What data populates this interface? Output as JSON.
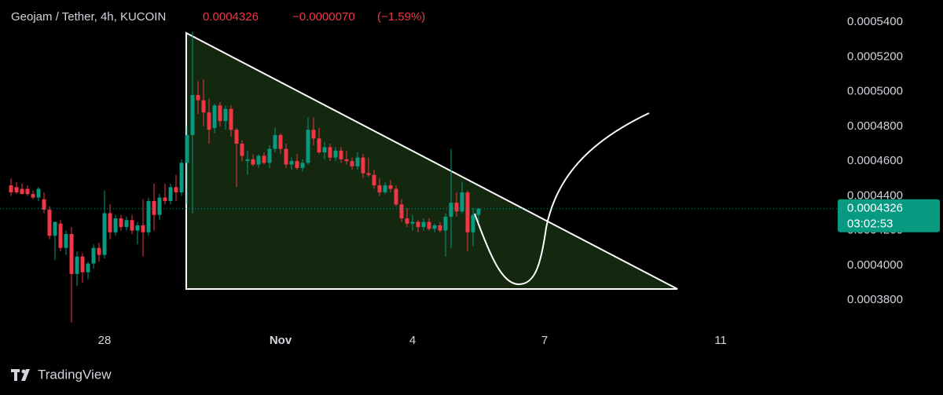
{
  "chart_data": {
    "type": "candlestick",
    "title": "Geojam / Tether, 4h, KUCOIN",
    "change": "−0.0000070",
    "change_pct": "(−1.59%)",
    "last_price": 0.0004326,
    "timer": "03:02:53",
    "brand": "TradingView",
    "up_color": "#089981",
    "down_color": "#f23645",
    "grid": false,
    "ylim": [
      0.0003493,
      0.0005527
    ],
    "yticks": [
      {
        "value": 0.00038,
        "label": "0.0003800"
      },
      {
        "value": 0.0004,
        "label": "0.0004000"
      },
      {
        "value": 0.00042,
        "label": "0.0004200"
      },
      {
        "value": 0.00044,
        "label": "0.0004400"
      },
      {
        "value": 0.00046,
        "label": "0.0004600"
      },
      {
        "value": 0.00048,
        "label": "0.0004800"
      },
      {
        "value": 0.0005,
        "label": "0.0005000"
      },
      {
        "value": 0.00052,
        "label": "0.0005200"
      },
      {
        "value": 0.00054,
        "label": "0.0005400"
      }
    ],
    "categories": [
      null,
      null,
      null,
      null,
      null,
      null,
      null,
      null,
      null,
      null,
      null,
      null,
      null,
      null,
      null,
      null,
      null,
      "28",
      null,
      null,
      null,
      null,
      null,
      null,
      null,
      null,
      null,
      null,
      null,
      null,
      null,
      null,
      null,
      null,
      null,
      null,
      null,
      null,
      null,
      null,
      null,
      null,
      null,
      null,
      null,
      null,
      null,
      null,
      null,
      "Nov",
      null,
      null,
      null,
      null,
      null,
      null,
      null,
      null,
      null,
      null,
      null,
      null,
      null,
      null,
      null,
      null,
      null,
      null,
      null,
      null,
      null,
      null,
      null,
      "4",
      null,
      null,
      null,
      null,
      null,
      null,
      null,
      null,
      null,
      null,
      null,
      null,
      null,
      null,
      null,
      null,
      null,
      null,
      null,
      null,
      null,
      null,
      null,
      "7",
      null,
      null,
      null,
      null,
      null,
      null,
      null,
      null,
      null,
      null,
      null,
      null,
      null,
      null,
      null,
      null,
      null,
      null,
      null,
      null,
      null,
      null,
      null,
      null,
      null,
      null,
      null,
      null,
      null,
      null,
      null,
      "11",
      null,
      null,
      null,
      null,
      null,
      null,
      null,
      null,
      null,
      null,
      null,
      null,
      null,
      null,
      null,
      null,
      null,
      null,
      null,
      null,
      null
    ],
    "open": [
      0.000446,
      0.000445,
      0.000444,
      0.000444,
      0.000441,
      0.000439,
      0.000438,
      0.000432,
      0.000417,
      0.000424,
      0.00041,
      0.000418,
      0.000395,
      0.000405,
      0.000396,
      0.000401,
      0.00041,
      0.000406,
      0.00043,
      0.000419,
      0.000427,
      0.000422,
      0.000426,
      0.00042,
      0.000423,
      0.000419,
      0.000437,
      0.000429,
      0.000439,
      0.000437,
      0.000445,
      0.000442,
      0.000459,
      0.000475,
      0.000498,
      0.000495,
      0.000488,
      0.000479,
      0.000492,
      0.000483,
      0.00049,
      0.000478,
      0.00047,
      0.00046,
      0.000461,
      0.000458,
      0.000463,
      0.000459,
      0.000467,
      0.000475,
      0.000467,
      0.000458,
      0.00046,
      0.000456,
      0.000459,
      0.000478,
      0.000473,
      0.000465,
      0.000468,
      0.000462,
      0.000466,
      0.000461,
      0.00046,
      0.000457,
      0.000462,
      0.000453,
      0.000452,
      0.000446,
      0.000442,
      0.000446,
      0.000444,
      0.000435,
      0.000427,
      0.000424,
      0.000425,
      0.000422,
      0.000425,
      0.000421,
      0.000423,
      0.00042,
      0.000428,
      0.000436,
      0.000431,
      0.000442,
      0.000419,
      0.000429,
      null,
      null,
      null,
      null,
      null,
      null,
      null,
      null,
      null,
      null,
      null,
      null,
      null,
      null,
      null,
      null,
      null,
      null,
      null,
      null,
      null,
      null,
      null,
      null,
      null,
      null,
      null,
      null,
      null,
      null,
      null,
      null,
      null,
      null,
      null,
      null,
      null,
      null,
      null,
      null,
      null,
      null,
      null,
      null,
      null,
      null,
      null,
      null,
      null,
      null,
      null,
      null,
      null,
      null,
      null,
      null,
      null,
      null,
      null,
      null,
      null,
      null,
      null,
      null,
      null
    ],
    "high": [
      0.00045,
      0.000448,
      0.000447,
      0.000446,
      0.000443,
      0.000445,
      0.000442,
      0.000434,
      0.000423,
      0.000426,
      0.00042,
      0.000422,
      0.000408,
      0.000407,
      0.000402,
      0.000412,
      0.000413,
      0.000443,
      0.000435,
      0.000429,
      0.000429,
      0.000428,
      0.000429,
      0.000425,
      0.000438,
      0.000439,
      0.000447,
      0.000441,
      0.000447,
      0.000447,
      0.000452,
      0.000461,
      0.00048,
      0.0005345,
      0.000506,
      0.000507,
      0.000496,
      0.000493,
      0.000494,
      0.000492,
      0.000492,
      0.000479,
      0.000472,
      0.000466,
      0.000464,
      0.000464,
      0.000465,
      0.000469,
      0.000479,
      0.000476,
      0.00047,
      0.000462,
      0.000464,
      0.000461,
      0.000485,
      0.000485,
      0.000479,
      0.000471,
      0.00047,
      0.000468,
      0.000468,
      0.000466,
      0.000462,
      0.000465,
      0.000464,
      0.000462,
      0.000455,
      0.00045,
      0.000448,
      0.000449,
      0.000446,
      0.000438,
      0.000433,
      0.000429,
      0.000426,
      0.000427,
      0.000427,
      0.000424,
      0.000425,
      0.00043,
      0.000467,
      0.000442,
      0.000448,
      0.000443,
      0.000433,
      0.000433,
      null,
      null,
      null,
      null,
      null,
      null,
      null,
      null,
      null,
      null,
      null,
      null,
      null,
      null,
      null,
      null,
      null,
      null,
      null,
      null,
      null,
      null,
      null,
      null,
      null,
      null,
      null,
      null,
      null,
      null,
      null,
      null,
      null,
      null,
      null,
      null,
      null,
      null,
      null,
      null,
      null,
      null,
      null,
      null,
      null,
      null,
      null,
      null,
      null,
      null,
      null,
      null,
      null,
      null,
      null,
      null,
      null,
      null,
      null,
      null,
      null,
      null,
      null,
      null,
      null
    ],
    "low": [
      0.00044,
      0.000441,
      0.000441,
      0.00044,
      0.000438,
      0.000437,
      0.00043,
      0.000415,
      0.000403,
      0.000408,
      0.000406,
      0.000367,
      0.000388,
      0.00039,
      0.000392,
      0.000398,
      0.000402,
      0.000404,
      0.000415,
      0.000417,
      0.00042,
      0.00042,
      0.000418,
      0.000412,
      0.000405,
      0.000417,
      0.00042,
      0.000426,
      0.000435,
      0.000435,
      0.000437,
      0.00044,
      0.000435,
      0.00043,
      0.000487,
      0.00048,
      0.00047,
      0.000476,
      0.00048,
      0.000478,
      0.000474,
      0.000445,
      0.00046,
      0.000452,
      0.000457,
      0.000456,
      0.000458,
      0.000456,
      0.000465,
      0.000464,
      0.000456,
      0.000455,
      0.000455,
      0.000454,
      0.000458,
      0.000469,
      0.000464,
      0.000461,
      0.00046,
      0.00046,
      0.000459,
      0.000458,
      0.000455,
      0.000455,
      0.00045,
      0.000451,
      0.000444,
      0.00044,
      0.000441,
      0.000442,
      0.000434,
      0.000425,
      0.000422,
      0.00042,
      0.000419,
      0.00042,
      0.00042,
      0.000419,
      0.000419,
      0.000405,
      0.00041,
      0.000428,
      0.00043,
      0.000408,
      0.000411,
      0.000425,
      null,
      null,
      null,
      null,
      null,
      null,
      null,
      null,
      null,
      null,
      null,
      null,
      null,
      null,
      null,
      null,
      null,
      null,
      null,
      null,
      null,
      null,
      null,
      null,
      null,
      null,
      null,
      null,
      null,
      null,
      null,
      null,
      null,
      null,
      null,
      null,
      null,
      null,
      null,
      null,
      null,
      null,
      null,
      null,
      null,
      null,
      null,
      null,
      null,
      null,
      null,
      null,
      null,
      null,
      null,
      null,
      null,
      null,
      null,
      null,
      null,
      null,
      null,
      null,
      null
    ],
    "close": [
      0.000442,
      0.000442,
      0.000441,
      0.000441,
      0.000439,
      0.000444,
      0.000432,
      0.000417,
      0.000425,
      0.00041,
      0.000418,
      0.000395,
      0.000405,
      0.000396,
      0.000401,
      0.00041,
      0.000406,
      0.00043,
      0.000419,
      0.000427,
      0.000422,
      0.000426,
      0.00042,
      0.000423,
      0.000419,
      0.000437,
      0.000429,
      0.000439,
      0.000437,
      0.000445,
      0.000442,
      0.000459,
      0.000475,
      0.000498,
      0.000495,
      0.000488,
      0.000478,
      0.000492,
      0.000483,
      0.00049,
      0.000478,
      0.00047,
      0.000463,
      0.000461,
      0.000458,
      0.000463,
      0.000459,
      0.000467,
      0.000475,
      0.000467,
      0.000458,
      0.00046,
      0.000456,
      0.000459,
      0.000478,
      0.000473,
      0.000465,
      0.000468,
      0.000462,
      0.000466,
      0.000461,
      0.00046,
      0.000457,
      0.000462,
      0.000453,
      0.000452,
      0.000446,
      0.000442,
      0.000446,
      0.000444,
      0.000435,
      0.000427,
      0.000424,
      0.000425,
      0.000422,
      0.000425,
      0.000421,
      0.000423,
      0.00042,
      0.000428,
      0.000436,
      0.000431,
      0.000442,
      0.000419,
      0.000429,
      0.0004326,
      null,
      null,
      null,
      null,
      null,
      null,
      null,
      null,
      null,
      null,
      null,
      null,
      null,
      null,
      null,
      null,
      null,
      null,
      null,
      null,
      null,
      null,
      null,
      null,
      null,
      null,
      null,
      null,
      null,
      null,
      null,
      null,
      null,
      null,
      null,
      null,
      null,
      null,
      null,
      null,
      null,
      null,
      null,
      null,
      null,
      null,
      null,
      null,
      null,
      null,
      null,
      null,
      null,
      null,
      null,
      null,
      null,
      null,
      null,
      null,
      null,
      null,
      null,
      null,
      null
    ]
  }
}
